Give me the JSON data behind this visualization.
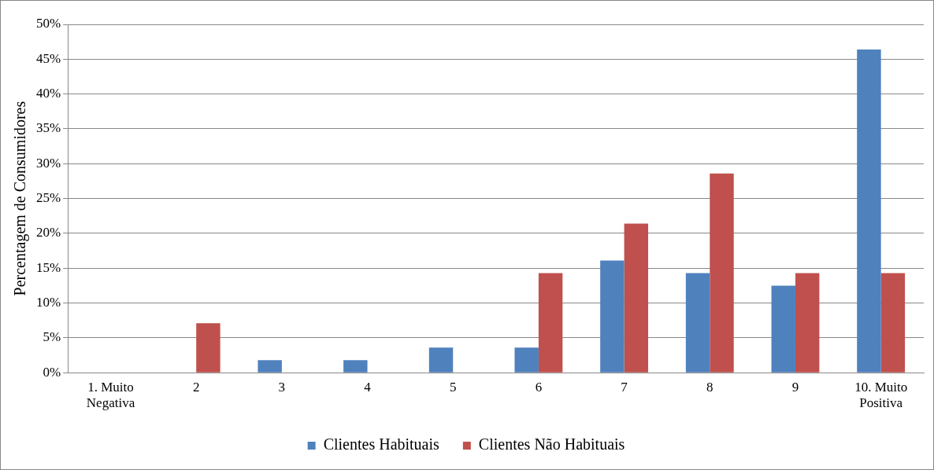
{
  "chart_data": {
    "type": "bar",
    "ylabel": "Percentagem de Consumidores",
    "categories": [
      "1. Muito\nNegativa",
      "2",
      "3",
      "4",
      "5",
      "6",
      "7",
      "8",
      "9",
      "10. Muito\nPositiva"
    ],
    "series": [
      {
        "name": "Clientes Habituais",
        "color": "#4f81bd",
        "values": [
          0,
          0,
          1.8,
          1.8,
          3.6,
          3.6,
          16.1,
          14.3,
          12.5,
          46.4
        ]
      },
      {
        "name": "Clientes Não Habituais",
        "color": "#c0504d",
        "values": [
          0,
          7.1,
          0,
          0,
          0,
          14.3,
          21.4,
          28.6,
          14.3,
          14.3
        ]
      }
    ],
    "ylim": [
      0,
      50
    ],
    "yticks": [
      {
        "value": 0,
        "label": "0%"
      },
      {
        "value": 5,
        "label": "5%"
      },
      {
        "value": 10,
        "label": "10%"
      },
      {
        "value": 15,
        "label": "15%"
      },
      {
        "value": 20,
        "label": "20%"
      },
      {
        "value": 25,
        "label": "25%"
      },
      {
        "value": 30,
        "label": "30%"
      },
      {
        "value": 35,
        "label": "35%"
      },
      {
        "value": 40,
        "label": "40%"
      },
      {
        "value": 45,
        "label": "45%"
      },
      {
        "value": 50,
        "label": "50%"
      }
    ],
    "grid": "y",
    "legend": "bottom"
  }
}
